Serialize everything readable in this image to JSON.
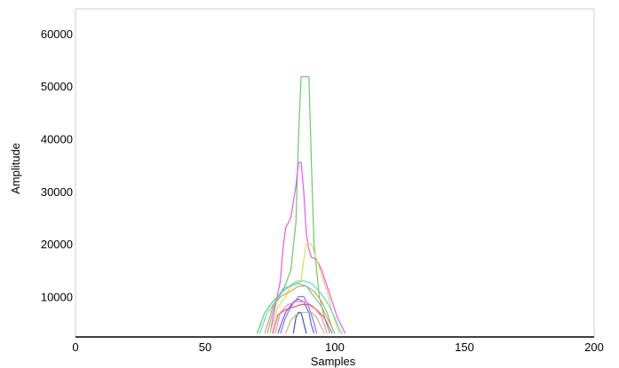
{
  "chart_data": {
    "type": "line",
    "xlabel": "Samples",
    "ylabel": "Amplitude",
    "xlim": [
      0,
      200
    ],
    "ylim": [
      3000,
      63000
    ],
    "x_ticks": [
      0,
      50,
      100,
      150,
      200
    ],
    "y_ticks": [
      10000,
      20000,
      30000,
      40000,
      50000,
      60000
    ],
    "grid": false,
    "legend": "none",
    "series": [
      {
        "color": "#66cc66",
        "points": [
          [
            70,
            3000
          ],
          [
            73,
            7000
          ],
          [
            76,
            9000
          ],
          [
            80,
            11000
          ],
          [
            83,
            15000
          ],
          [
            85,
            24000
          ],
          [
            86,
            40000
          ],
          [
            87,
            51800
          ],
          [
            90,
            51800
          ],
          [
            91,
            35000
          ],
          [
            92,
            20000
          ],
          [
            94,
            10000
          ],
          [
            96,
            6000
          ],
          [
            98,
            3000
          ]
        ]
      },
      {
        "color": "#ee55ee",
        "points": [
          [
            75,
            3000
          ],
          [
            77,
            8000
          ],
          [
            79,
            13000
          ],
          [
            80,
            19000
          ],
          [
            81,
            23000
          ],
          [
            83,
            25000
          ],
          [
            84,
            28000
          ],
          [
            85,
            31000
          ],
          [
            86,
            35500
          ],
          [
            87,
            35500
          ],
          [
            88,
            30000
          ],
          [
            89,
            22000
          ],
          [
            90,
            19000
          ],
          [
            91,
            17500
          ],
          [
            93,
            17000
          ],
          [
            95,
            15000
          ],
          [
            97,
            12000
          ],
          [
            99,
            9000
          ],
          [
            101,
            6000
          ],
          [
            103,
            4000
          ],
          [
            104,
            3000
          ]
        ]
      },
      {
        "color": "#dddd55",
        "points": [
          [
            75,
            3000
          ],
          [
            78,
            8000
          ],
          [
            81,
            10000
          ],
          [
            83,
            12000
          ],
          [
            85,
            13000
          ],
          [
            87,
            13000
          ],
          [
            88,
            17000
          ],
          [
            89,
            20000
          ],
          [
            91,
            20000
          ],
          [
            93,
            17000
          ],
          [
            95,
            14000
          ],
          [
            97,
            11000
          ],
          [
            99,
            7000
          ],
          [
            101,
            4000
          ],
          [
            102,
            3000
          ]
        ]
      },
      {
        "color": "#55dddd",
        "points": [
          [
            71,
            3000
          ],
          [
            74,
            7000
          ],
          [
            77,
            9000
          ],
          [
            80,
            11000
          ],
          [
            84,
            12500
          ],
          [
            88,
            13000
          ],
          [
            91,
            12500
          ],
          [
            94,
            11000
          ],
          [
            97,
            9000
          ],
          [
            100,
            6000
          ],
          [
            102,
            3500
          ],
          [
            103,
            3000
          ]
        ]
      },
      {
        "color": "#4477ee",
        "points": [
          [
            78,
            3000
          ],
          [
            81,
            7000
          ],
          [
            84,
            9000
          ],
          [
            86,
            9500
          ],
          [
            88,
            9000
          ],
          [
            90,
            7000
          ],
          [
            91,
            4500
          ],
          [
            92,
            3000
          ]
        ]
      },
      {
        "color": "#ee5555",
        "points": [
          [
            76,
            3000
          ],
          [
            78,
            6500
          ],
          [
            81,
            7500
          ],
          [
            84,
            8000
          ],
          [
            87,
            8500
          ],
          [
            90,
            8500
          ],
          [
            93,
            7500
          ],
          [
            96,
            6000
          ],
          [
            98,
            4000
          ],
          [
            99,
            3000
          ]
        ]
      },
      {
        "color": "#ee9944",
        "points": [
          [
            73,
            3000
          ],
          [
            76,
            8000
          ],
          [
            79,
            10000
          ],
          [
            83,
            11000
          ],
          [
            86,
            12000
          ],
          [
            89,
            12000
          ],
          [
            92,
            11000
          ],
          [
            95,
            9000
          ],
          [
            97,
            7000
          ],
          [
            99,
            4000
          ],
          [
            100,
            3000
          ]
        ]
      },
      {
        "color": "#aa66ee",
        "points": [
          [
            79,
            3000
          ],
          [
            81,
            6000
          ],
          [
            83,
            8000
          ],
          [
            86,
            10000
          ],
          [
            88,
            10000
          ],
          [
            90,
            8000
          ],
          [
            92,
            5000
          ],
          [
            93,
            3000
          ]
        ]
      },
      {
        "color": "#66ccaa",
        "points": [
          [
            74,
            3000
          ],
          [
            77,
            9000
          ],
          [
            80,
            11500
          ],
          [
            83,
            12000
          ],
          [
            86,
            12500
          ],
          [
            89,
            12000
          ],
          [
            92,
            10000
          ],
          [
            95,
            8000
          ],
          [
            98,
            5000
          ],
          [
            100,
            3000
          ]
        ]
      },
      {
        "color": "#4455bb",
        "points": [
          [
            84,
            3000
          ],
          [
            85,
            6000
          ],
          [
            86,
            7000
          ],
          [
            87,
            7000
          ],
          [
            88,
            5000
          ],
          [
            89,
            3000
          ]
        ]
      },
      {
        "color": "#bbbb88",
        "points": [
          [
            81,
            3000
          ],
          [
            83,
            5500
          ],
          [
            85,
            6500
          ],
          [
            88,
            7000
          ],
          [
            91,
            7000
          ],
          [
            93,
            6000
          ],
          [
            95,
            4000
          ],
          [
            96,
            3000
          ]
        ]
      },
      {
        "color": "#ff88cc",
        "points": [
          [
            77,
            3000
          ],
          [
            79,
            7000
          ],
          [
            82,
            8500
          ],
          [
            85,
            9000
          ],
          [
            89,
            9000
          ],
          [
            92,
            8000
          ],
          [
            95,
            6000
          ],
          [
            97,
            3000
          ]
        ]
      }
    ]
  }
}
